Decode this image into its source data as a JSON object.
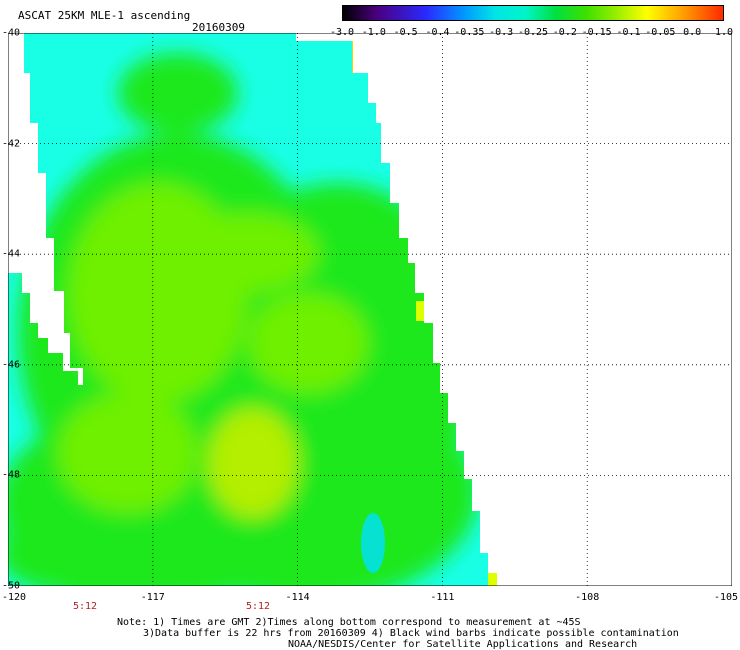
{
  "header": {
    "title": "ASCAT 25KM MLE-1 ascending",
    "date": "20160309"
  },
  "colorbar": {
    "labels": [
      "-3.0",
      "-1.0",
      "-0.5",
      "-0.4",
      "-0.35",
      "-0.3",
      "-0.25",
      "-0.2",
      "-0.15",
      "-0.1",
      "-0.05",
      "0.0",
      "1.0"
    ],
    "colors": [
      "#000000",
      "#4a0080",
      "#2a2aff",
      "#0099ff",
      "#00e5e5",
      "#00f5c8",
      "#00e040",
      "#3de000",
      "#99ee00",
      "#ffff00",
      "#ff9900",
      "#ff2a00"
    ]
  },
  "map": {
    "lat_ticks": [
      "-40",
      "-42",
      "-44",
      "-46",
      "-48",
      "-50"
    ],
    "lon_ticks": [
      "-120",
      "-117",
      "-114",
      "-111",
      "-108",
      "-105"
    ],
    "time_labels": [
      "5:12",
      "5:12"
    ],
    "swath_colors": {
      "cyan": "#19ffe6",
      "green": "#1ee81e",
      "lime": "#6ef000",
      "yellow_green": "#b4ee00",
      "light_blue": "#00e0ff"
    }
  },
  "notes": {
    "line1": "Note: 1) Times are GMT 2)Times along bottom correspond to measurement at ~45S",
    "line2": "3)Data buffer is 22 hrs from 20160309 4) Black wind barbs indicate possible contamination",
    "line3": "NOAA/NESDIS/Center for Satellite Applications and Research"
  }
}
